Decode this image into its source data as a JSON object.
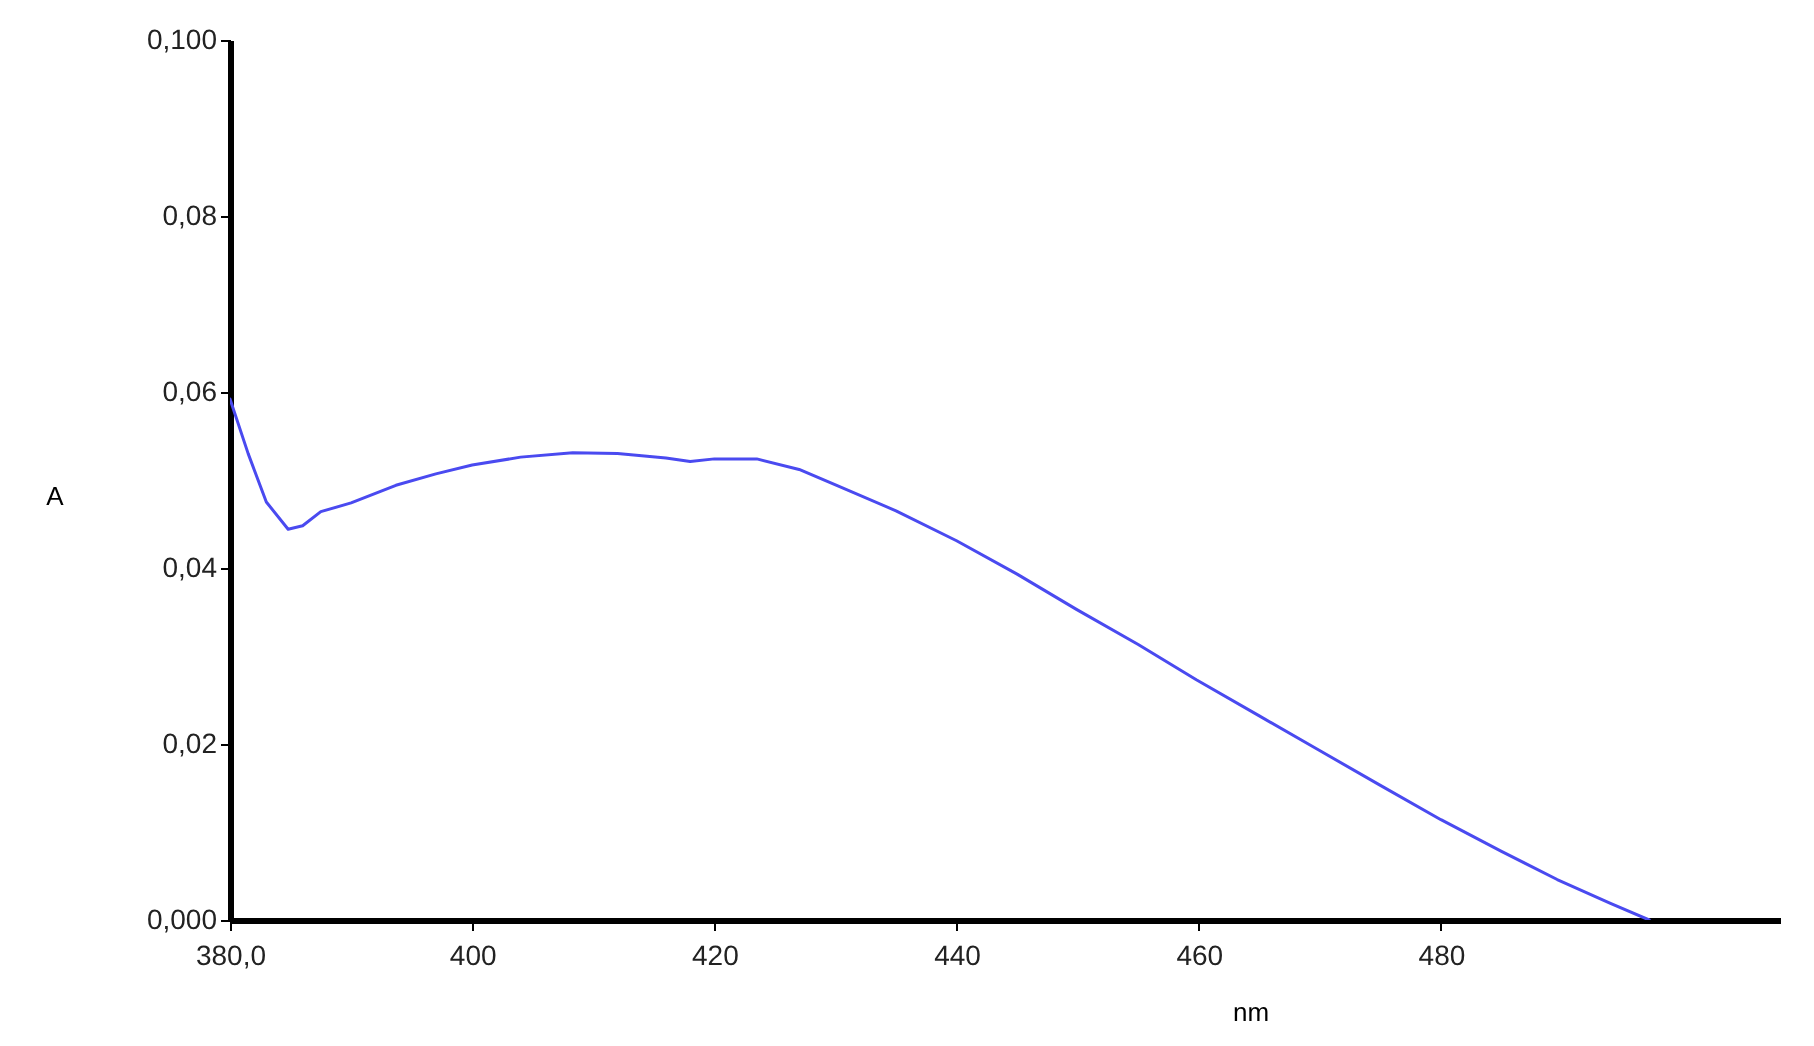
{
  "chart_data": {
    "type": "line",
    "xlabel": "nm",
    "ylabel": "A",
    "x": [
      380,
      381.5,
      383,
      384.8,
      386,
      387.5,
      390,
      393.7,
      397,
      400,
      404,
      408.3,
      412,
      416,
      418,
      420,
      423.5,
      427,
      430.1,
      435,
      440,
      445,
      449.9,
      455,
      459.8,
      465,
      469.8,
      475,
      480,
      485,
      489.6,
      494,
      497.2
    ],
    "series": [
      {
        "color": "#4a4af0",
        "values": [
          0.0592,
          0.053,
          0.0475,
          0.0444,
          0.0448,
          0.0464,
          0.0474,
          0.0494,
          0.0507,
          0.0517,
          0.0526,
          0.0531,
          0.053,
          0.0525,
          0.0521,
          0.0524,
          0.0524,
          0.0512,
          0.0494,
          0.0465,
          0.0431,
          0.0393,
          0.0353,
          0.0313,
          0.0273,
          0.0232,
          0.0194,
          0.0153,
          0.0114,
          0.0078,
          0.0046,
          0.0019,
          0
        ]
      }
    ],
    "xlim": [
      380,
      508
    ],
    "xticks": [
      {
        "value": 380,
        "label": "380,0"
      },
      400,
      420,
      440,
      460,
      480
    ],
    "ylim": [
      0,
      0.1
    ],
    "yticks": [
      {
        "value": 0,
        "label": "0,000"
      },
      {
        "value": 0.02,
        "label": "0,02"
      },
      {
        "value": 0.04,
        "label": "0,04"
      },
      {
        "value": 0.06,
        "label": "0,06"
      },
      {
        "value": 0.08,
        "label": "0,08"
      },
      {
        "value": 0.1,
        "label": "0,100"
      }
    ],
    "grid": false,
    "marker": "none",
    "line_style": "solid"
  }
}
